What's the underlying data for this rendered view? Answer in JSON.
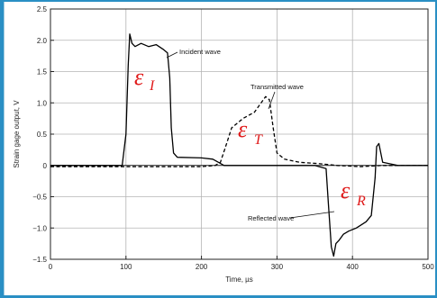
{
  "chart_data": {
    "type": "line",
    "title": "",
    "xlabel": "Time, µs",
    "ylabel": "Strain gage output, V",
    "xlim": [
      0,
      500
    ],
    "ylim": [
      -1.5,
      2.5
    ],
    "xticks": [
      0,
      100,
      200,
      300,
      400,
      500
    ],
    "yticks": [
      2.5,
      2.0,
      1.5,
      1.0,
      0.5,
      0,
      -0.5,
      -1.0,
      -1.5
    ],
    "ytick_labels": [
      "2.5",
      "2.0",
      "1.5",
      "1.0",
      "0.5",
      "0",
      "−0.5",
      "−1.0",
      "−1.5"
    ],
    "grid": true,
    "series": [
      {
        "name": "Incident wave",
        "style": "solid",
        "color": "#000000",
        "x": [
          0,
          95,
          100,
          103,
          105,
          108,
          112,
          120,
          130,
          140,
          150,
          155,
          158,
          160,
          163,
          168,
          200,
          215,
          230,
          260,
          290,
          320,
          350,
          365,
          368,
          372,
          375,
          378,
          382,
          388,
          395,
          405,
          418,
          425,
          430,
          432,
          435,
          440,
          460,
          500
        ],
        "y": [
          0.0,
          0.0,
          0.5,
          1.6,
          2.1,
          1.95,
          1.9,
          1.95,
          1.9,
          1.93,
          1.85,
          1.8,
          1.4,
          0.6,
          0.2,
          0.13,
          0.12,
          0.1,
          0.0,
          0.0,
          0.0,
          0.0,
          0.0,
          -0.05,
          -0.6,
          -1.3,
          -1.45,
          -1.25,
          -1.2,
          -1.1,
          -1.05,
          -1.0,
          -0.9,
          -0.8,
          -0.2,
          0.3,
          0.35,
          0.05,
          0.0,
          0.0
        ]
      },
      {
        "name": "Transmitted wave",
        "style": "dashed",
        "color": "#000000",
        "x": [
          0,
          100,
          200,
          218,
          225,
          232,
          240,
          255,
          270,
          285,
          290,
          295,
          300,
          310,
          330,
          355,
          380,
          410,
          440,
          500
        ],
        "y": [
          -0.02,
          -0.02,
          -0.02,
          0.0,
          0.05,
          0.3,
          0.6,
          0.75,
          0.85,
          1.1,
          1.05,
          0.6,
          0.2,
          0.1,
          0.05,
          0.03,
          0.0,
          -0.02,
          0.0,
          0.0
        ]
      }
    ],
    "annotations": [
      {
        "text": "Incident wave"
      },
      {
        "text": "Transmitted wave"
      },
      {
        "text": "Reflected wave"
      }
    ],
    "symbols": [
      {
        "base": "ε",
        "sub": "I"
      },
      {
        "base": "ε",
        "sub": "T"
      },
      {
        "base": "ε",
        "sub": "R"
      }
    ]
  }
}
